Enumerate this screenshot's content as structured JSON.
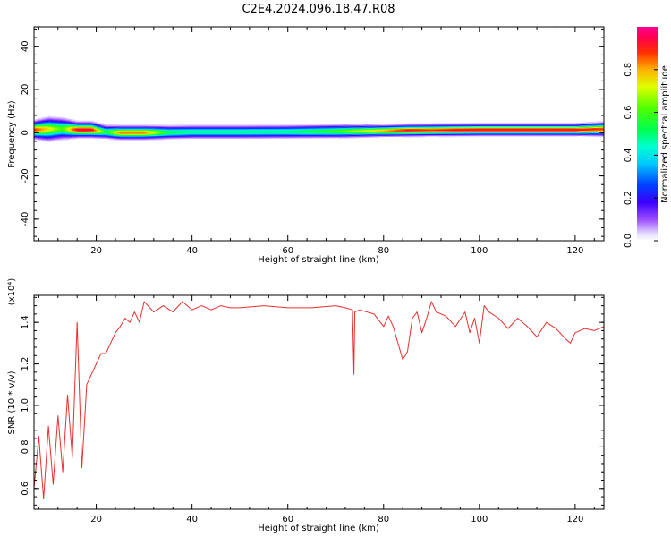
{
  "title": "C2E4.2024.096.18.47.R08",
  "colors": {
    "snr_line": "#e8302e",
    "axis": "#000000"
  },
  "chart_data": [
    {
      "type": "heatmap",
      "xlabel": "Height of straight line (km)",
      "ylabel": "Frequency (Hz)",
      "xlim": [
        7,
        126
      ],
      "ylim": [
        -50,
        49
      ],
      "x_ticks": [
        20,
        40,
        60,
        80,
        100,
        120
      ],
      "x_tick_labels": [
        "20",
        "40",
        "60",
        "80",
        "100",
        "120"
      ],
      "y_ticks": [
        -40,
        -20,
        0,
        20,
        40
      ],
      "y_tick_labels": [
        "-40",
        "-20",
        "0",
        "20",
        "40"
      ],
      "colorbar": {
        "label": "Normalized spectral amplitude",
        "range": [
          0,
          1
        ],
        "ticks": [
          0.0,
          0.2,
          0.4,
          0.6,
          0.8
        ],
        "tick_labels": [
          "0.0",
          "0.2",
          "0.4",
          "0.6",
          "0.8"
        ],
        "colormap": "rainbow"
      },
      "band": {
        "x": [
          7,
          10,
          13,
          16,
          19,
          22,
          25,
          30,
          35,
          40,
          50,
          60,
          70,
          80,
          85,
          90,
          95,
          100,
          110,
          120,
          126
        ],
        "center_hz": [
          1.5,
          1.8,
          2.0,
          1.5,
          1.5,
          0.5,
          0.2,
          0.2,
          0.3,
          0.5,
          0.5,
          0.6,
          0.8,
          1.0,
          1.2,
          1.3,
          1.4,
          1.5,
          1.5,
          1.5,
          1.8
        ],
        "peak_amplitude": [
          0.9,
          0.75,
          0.6,
          0.95,
          0.95,
          0.55,
          0.85,
          0.85,
          0.55,
          0.5,
          0.5,
          0.5,
          0.6,
          0.8,
          0.95,
          0.9,
          0.95,
          0.95,
          0.95,
          0.95,
          0.9
        ],
        "half_width_hz": [
          4.5,
          6,
          5.5,
          4,
          4,
          3.5,
          3.5,
          3.5,
          3.5,
          3.5,
          3.5,
          3.5,
          3.5,
          3,
          3,
          3,
          3,
          3,
          3,
          3,
          3.5
        ]
      }
    },
    {
      "type": "line",
      "xlabel": "Height of straight line (km)",
      "ylabel": "SNR (10 * v/v)",
      "y_multiplier": "(x10⁴)",
      "xlim": [
        7,
        126
      ],
      "ylim": [
        0.5,
        1.53
      ],
      "x_ticks": [
        20,
        40,
        60,
        80,
        100,
        120
      ],
      "x_tick_labels": [
        "20",
        "40",
        "60",
        "80",
        "100",
        "120"
      ],
      "y_ticks": [
        0.6,
        0.8,
        1.0,
        1.2,
        1.4
      ],
      "y_tick_labels": [
        "0.6",
        "0.8",
        "1.0",
        "1.2",
        "1.4"
      ],
      "series": [
        {
          "x": [
            7,
            8,
            9,
            10,
            11,
            12,
            13,
            14,
            15,
            16,
            17,
            18,
            19,
            20,
            21,
            22,
            23,
            24,
            25,
            26,
            27,
            28,
            29,
            30,
            32,
            34,
            36,
            38,
            40,
            42,
            44,
            46,
            48,
            50,
            55,
            60,
            65,
            70,
            72,
            73.5,
            73.8,
            74,
            75,
            78,
            80,
            81,
            82,
            83,
            84,
            85,
            86,
            87,
            88,
            89,
            90,
            91,
            93,
            95,
            97,
            98,
            99,
            100,
            101,
            102,
            104,
            106,
            108,
            110,
            112,
            114,
            116,
            118,
            119,
            120,
            122,
            124,
            126
          ],
          "values": [
            0.6,
            0.85,
            0.55,
            0.9,
            0.62,
            0.95,
            0.68,
            1.05,
            0.75,
            1.4,
            0.7,
            1.1,
            1.15,
            1.2,
            1.25,
            1.25,
            1.3,
            1.35,
            1.38,
            1.42,
            1.4,
            1.45,
            1.4,
            1.5,
            1.45,
            1.48,
            1.45,
            1.5,
            1.46,
            1.48,
            1.46,
            1.48,
            1.47,
            1.47,
            1.48,
            1.47,
            1.47,
            1.48,
            1.47,
            1.46,
            1.15,
            1.45,
            1.46,
            1.44,
            1.38,
            1.43,
            1.38,
            1.3,
            1.22,
            1.26,
            1.42,
            1.45,
            1.35,
            1.42,
            1.5,
            1.45,
            1.43,
            1.38,
            1.45,
            1.35,
            1.42,
            1.3,
            1.48,
            1.45,
            1.42,
            1.37,
            1.42,
            1.38,
            1.33,
            1.4,
            1.37,
            1.32,
            1.3,
            1.35,
            1.37,
            1.36,
            1.38
          ]
        }
      ]
    }
  ]
}
